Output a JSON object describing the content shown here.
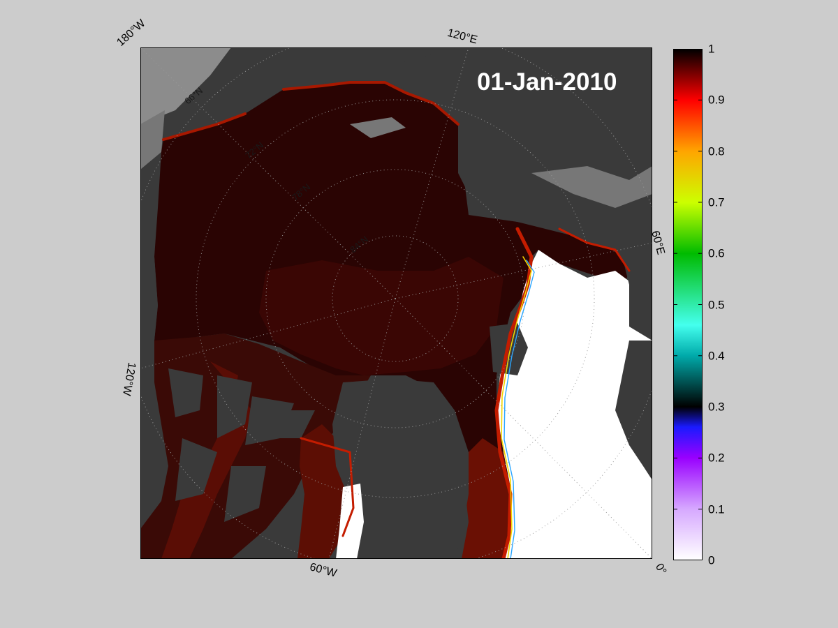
{
  "title": {
    "date": "01-Jan-2010"
  },
  "map": {
    "projection": "north-polar-stereographic",
    "variable": "sea ice concentration",
    "colors": {
      "land": "#3a3a3a",
      "coast_shadow": "#8c8c8c",
      "ice_full": "#2a0403",
      "ice_edge": "#7a1000",
      "open_water": "#ffffff",
      "graticule": "#9a9a9a"
    },
    "edge_labels": {
      "top_left": "180°W",
      "top": "120°E",
      "right": "60°E",
      "left": "120°W",
      "bottom": "60°W",
      "bottom_right": "0°"
    },
    "latitude_labels": [
      "66°N",
      "72°N",
      "78°N",
      "84°N"
    ]
  },
  "colorbar": {
    "min": 0,
    "max": 1,
    "ticks": [
      "0",
      "0.1",
      "0.2",
      "0.3",
      "0.4",
      "0.5",
      "0.6",
      "0.7",
      "0.8",
      "0.9",
      "1"
    ],
    "gradient": [
      [
        "#ffffff",
        0.0
      ],
      [
        "#d6a8ff",
        0.1
      ],
      [
        "#9900ff",
        0.2
      ],
      [
        "#1a1aff",
        0.26
      ],
      [
        "#000000",
        0.3
      ],
      [
        "#00aaaa",
        0.4
      ],
      [
        "#44ffee",
        0.46
      ],
      [
        "#00bb00",
        0.6
      ],
      [
        "#ccff00",
        0.7
      ],
      [
        "#ffa500",
        0.8
      ],
      [
        "#ff0000",
        0.9
      ],
      [
        "#000000",
        1.0
      ]
    ]
  }
}
